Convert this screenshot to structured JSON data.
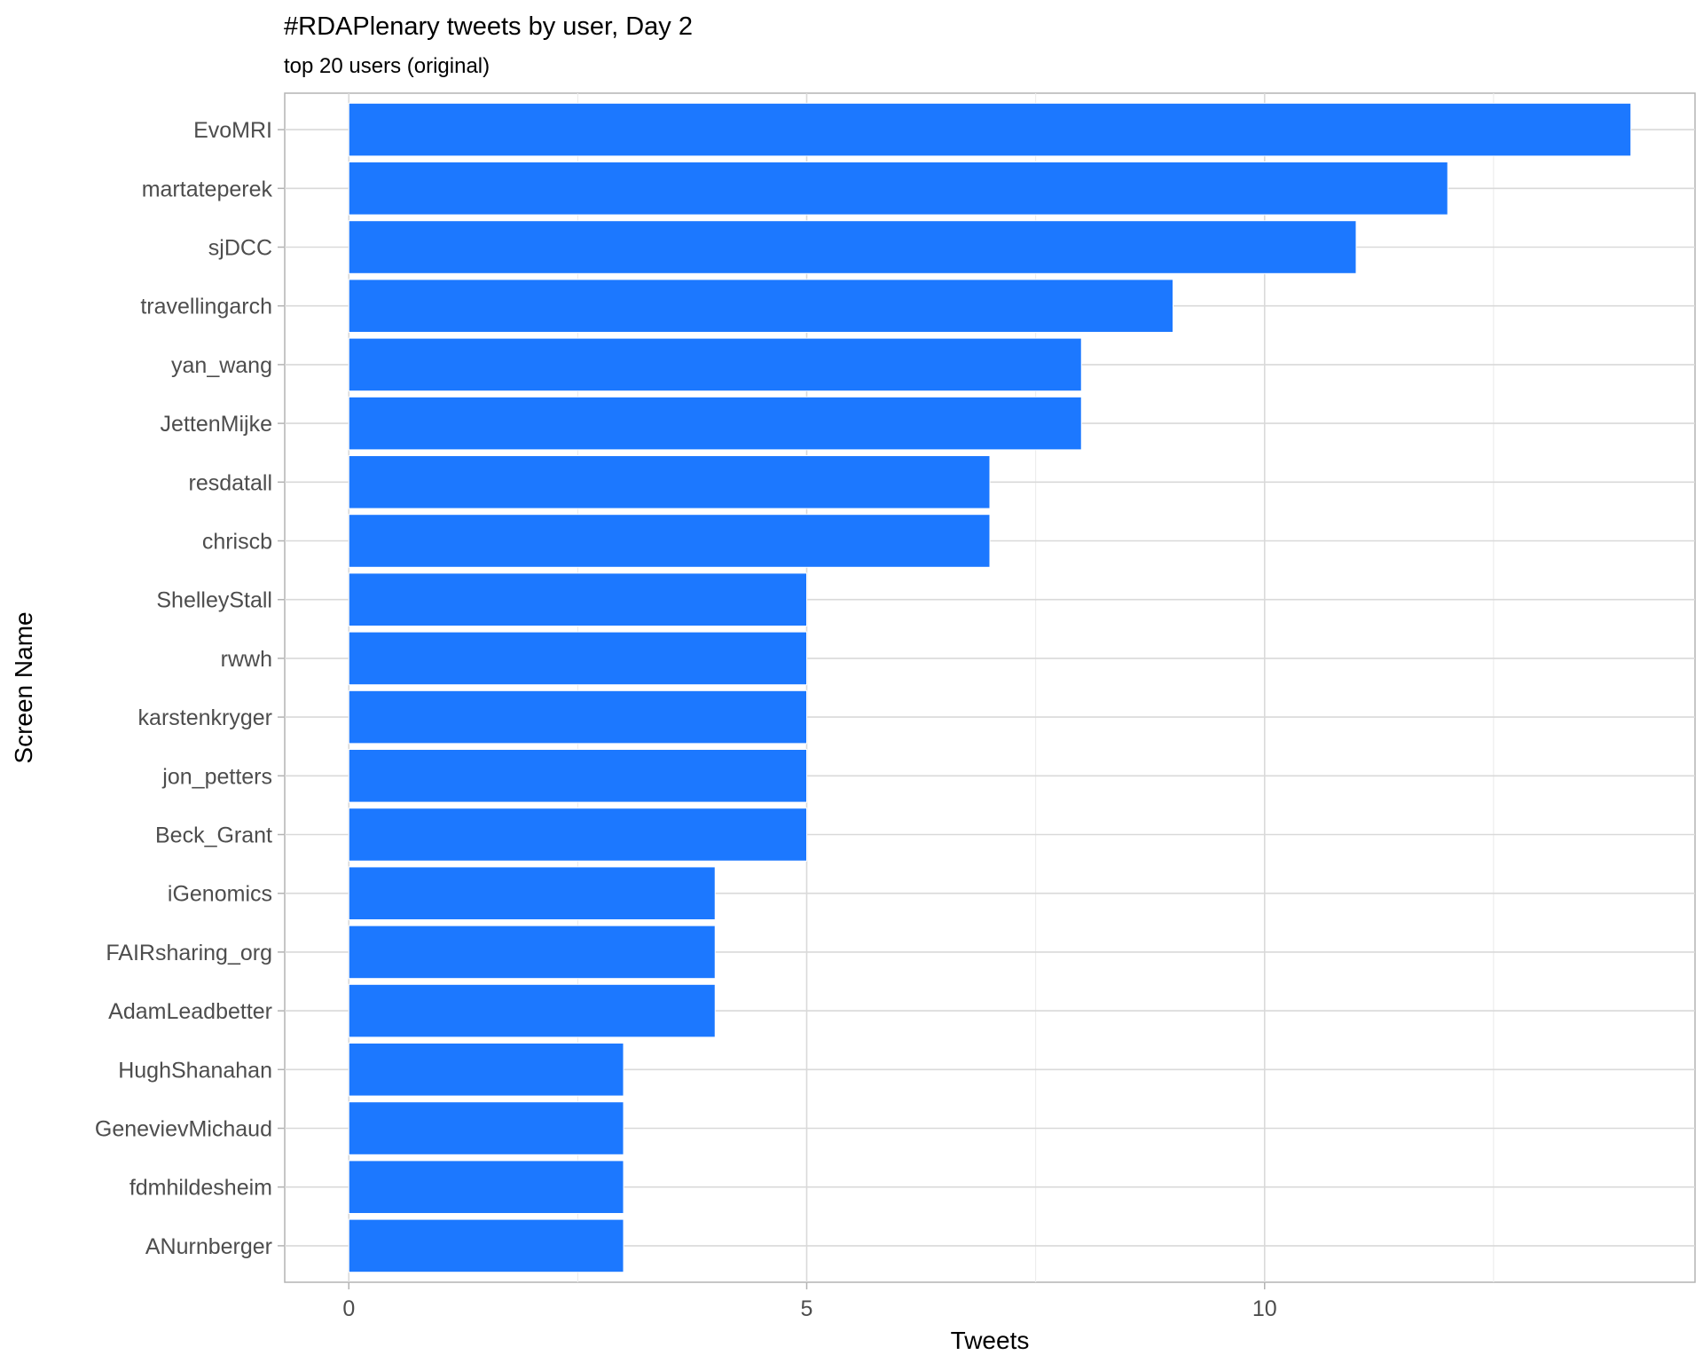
{
  "chart_data": {
    "type": "bar",
    "orientation": "horizontal",
    "title": "#RDAPlenary tweets by user, Day 2",
    "subtitle": "top 20 users (original)",
    "xlabel": "Tweets",
    "ylabel": "Screen Name",
    "xlim": [
      -0.7,
      14.7
    ],
    "x_ticks": [
      0,
      5,
      10
    ],
    "x_tick_labels": [
      "0",
      "5",
      "10"
    ],
    "grid": true,
    "bar_color": "#1c78ff",
    "categories": [
      "EvoMRI",
      "martateperek",
      "sjDCC",
      "travellingarch",
      "yan_wang",
      "JettenMijke",
      "resdatall",
      "chriscb",
      "ShelleyStall",
      "rwwh",
      "karstenkryger",
      "jon_petters",
      "Beck_Grant",
      "iGenomics",
      "FAIRsharing_org",
      "AdamLeadbetter",
      "HughShanahan",
      "GenevievMichaud",
      "fdmhildesheim",
      "ANurnberger"
    ],
    "values": [
      14,
      12,
      11,
      9,
      8,
      8,
      7,
      7,
      5,
      5,
      5,
      5,
      5,
      4,
      4,
      4,
      3,
      3,
      3,
      3
    ]
  }
}
